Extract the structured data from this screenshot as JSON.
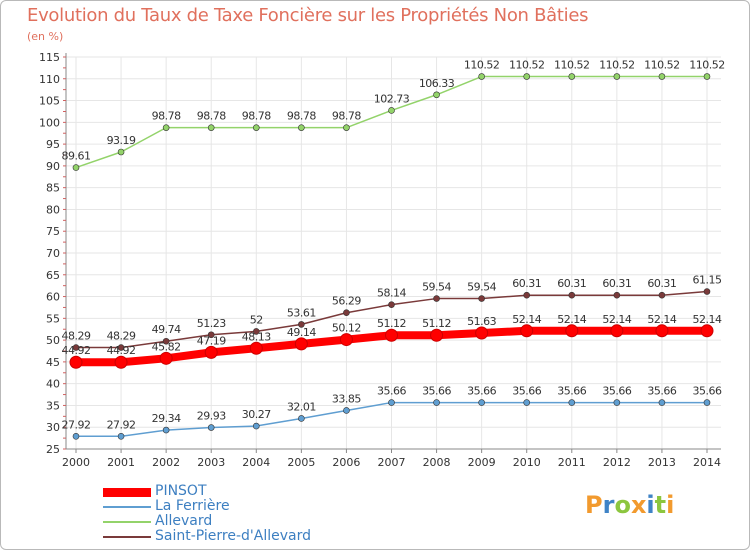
{
  "chart_data": {
    "type": "line",
    "title": "Evolution du Taux de Taxe Foncière sur les Propriétés Non Bâties",
    "ylabel": "(en %)",
    "xlabel": "",
    "ylim": [
      25,
      115
    ],
    "yticks": [
      25,
      30,
      35,
      40,
      45,
      50,
      55,
      60,
      65,
      70,
      75,
      80,
      85,
      90,
      95,
      100,
      105,
      110,
      115
    ],
    "x": [
      "2000",
      "2001",
      "2002",
      "2003",
      "2004",
      "2005",
      "2006",
      "2007",
      "2008",
      "2009",
      "2010",
      "2011",
      "2012",
      "2013",
      "2014"
    ],
    "series": [
      {
        "name": "PINSOT",
        "color": "#ff0000",
        "values": [
          44.92,
          44.92,
          45.82,
          47.19,
          48.13,
          49.14,
          50.12,
          51.12,
          51.12,
          51.63,
          52.14,
          52.14,
          52.14,
          52.14,
          52.14
        ],
        "labels": [
          "44.92",
          "44.92",
          "45.82",
          "47.19",
          "48.13",
          "49.14",
          "50.12",
          "51.12",
          "51.12",
          "51.63",
          "52.14",
          "52.14",
          "52.14",
          "52.14",
          "52.14"
        ]
      },
      {
        "name": "La Ferrière",
        "color": "#5f9ed1",
        "values": [
          27.92,
          27.92,
          29.34,
          29.93,
          30.27,
          32.01,
          33.85,
          35.66,
          35.66,
          35.66,
          35.66,
          35.66,
          35.66,
          35.66,
          35.66
        ],
        "labels": [
          "27.92",
          "27.92",
          "29.34",
          "29.93",
          "30.27",
          "32.01",
          "33.85",
          "35.66",
          "35.66",
          "35.66",
          "35.66",
          "35.66",
          "35.66",
          "35.66",
          "35.66"
        ]
      },
      {
        "name": "Allevard",
        "color": "#93d36a",
        "values": [
          89.61,
          93.19,
          98.78,
          98.78,
          98.78,
          98.78,
          98.78,
          102.73,
          106.33,
          110.52,
          110.52,
          110.52,
          110.52,
          110.52,
          110.52
        ],
        "labels": [
          "89.61",
          "93.19",
          "98.78",
          "98.78",
          "98.78",
          "98.78",
          "98.78",
          "102.73",
          "106.33",
          "110.52",
          "110.52",
          "110.52",
          "110.52",
          "110.52",
          "110.52"
        ]
      },
      {
        "name": "Saint-Pierre-d'Allevard",
        "color": "#7a3a3a",
        "values": [
          48.29,
          48.29,
          49.74,
          51.23,
          52,
          53.61,
          56.29,
          58.14,
          59.54,
          59.54,
          60.31,
          60.31,
          60.31,
          60.31,
          61.15
        ],
        "labels": [
          "48.29",
          "48.29",
          "49.74",
          "51.23",
          "52",
          "53.61",
          "56.29",
          "58.14",
          "59.54",
          "59.54",
          "60.31",
          "60.31",
          "60.31",
          "60.31",
          "61.15"
        ]
      }
    ],
    "legend": "bottom-left"
  },
  "logo": {
    "letters": [
      {
        "ch": "P",
        "color": "#f29a2e"
      },
      {
        "ch": "r",
        "color": "#3f83c6"
      },
      {
        "ch": "o",
        "color": "#8cc63f"
      },
      {
        "ch": "x",
        "color": "#f29a2e"
      },
      {
        "ch": "i",
        "color": "#3f83c6"
      },
      {
        "ch": "t",
        "color": "#8cc63f"
      },
      {
        "ch": "i",
        "color": "#f29a2e"
      }
    ]
  }
}
